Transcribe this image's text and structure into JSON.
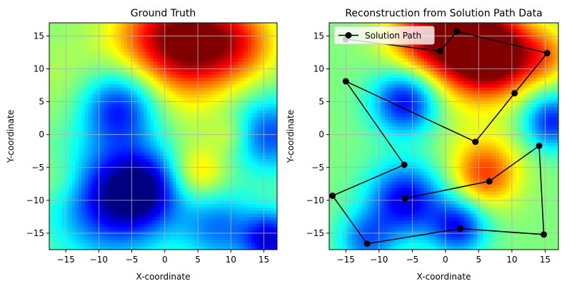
{
  "chart_data": [
    {
      "type": "heatmap",
      "title": "Ground Truth",
      "xlabel": "X-coordinate",
      "ylabel": "Y-coordinate",
      "xlim": [
        -17.5,
        17
      ],
      "ylim": [
        -17.5,
        17
      ],
      "xticks": [
        -15,
        -10,
        -5,
        0,
        5,
        10,
        15
      ],
      "yticks": [
        -15,
        -10,
        -5,
        0,
        5,
        10,
        15
      ],
      "xtick_labels": [
        "−15",
        "−10",
        "−5",
        "0",
        "5",
        "10",
        "15"
      ],
      "ytick_labels": [
        "−15",
        "−10",
        "−5",
        "0",
        "5",
        "10",
        "15"
      ],
      "grid": true,
      "colormap": "jet",
      "value_range": [
        0,
        1
      ],
      "field_blobs": [
        {
          "x": 5,
          "y": 14,
          "value": 0.95,
          "radius": 5
        },
        {
          "x": -2,
          "y": 15,
          "value": 0.75,
          "radius": 5
        },
        {
          "x": 12,
          "y": 14,
          "value": 0.7,
          "radius": 4
        },
        {
          "x": -7,
          "y": 4,
          "value": 0.15,
          "radius": 4
        },
        {
          "x": -8,
          "y": -10,
          "value": 0.1,
          "radius": 6
        },
        {
          "x": -3,
          "y": -8,
          "value": 0.2,
          "radius": 4
        },
        {
          "x": 16,
          "y": 0,
          "value": 0.2,
          "radius": 4
        },
        {
          "x": 16,
          "y": -16,
          "value": 0.1,
          "radius": 3
        },
        {
          "x": 5,
          "y": -6,
          "value": 0.7,
          "radius": 3
        },
        {
          "x": 10,
          "y": 0,
          "value": 0.6,
          "radius": 2
        },
        {
          "x": -15,
          "y": 8,
          "value": 0.55,
          "radius": 5
        },
        {
          "x": 3,
          "y": 4,
          "value": 0.55,
          "radius": 5
        },
        {
          "x": -16,
          "y": -7,
          "value": 0.6,
          "radius": 3
        },
        {
          "x": 8,
          "y": -14,
          "value": 0.25,
          "radius": 4
        }
      ]
    },
    {
      "type": "heatmap",
      "title": "Reconstruction from Solution Path Data",
      "xlabel": "X-coordinate",
      "ylabel": "Y-coordinate",
      "xlim": [
        -17.5,
        17
      ],
      "ylim": [
        -17.5,
        17
      ],
      "xticks": [
        -15,
        -10,
        -5,
        0,
        5,
        10,
        15
      ],
      "yticks": [
        -15,
        -10,
        -5,
        0,
        5,
        10,
        15
      ],
      "xtick_labels": [
        "−15",
        "−10",
        "−5",
        "0",
        "5",
        "10",
        "15"
      ],
      "ytick_labels": [
        "−15",
        "−10",
        "−5",
        "0",
        "5",
        "10",
        "15"
      ],
      "grid": true,
      "colormap": "jet",
      "value_range": [
        0,
        1
      ],
      "field_blobs": [
        {
          "x": 3,
          "y": 14,
          "value": 1.0,
          "radius": 5
        },
        {
          "x": 8,
          "y": 12,
          "value": 0.9,
          "radius": 4
        },
        {
          "x": -4,
          "y": 15,
          "value": 0.75,
          "radius": 4
        },
        {
          "x": 15,
          "y": 12,
          "value": 0.7,
          "radius": 3
        },
        {
          "x": 6,
          "y": -6,
          "value": 0.8,
          "radius": 3.5
        },
        {
          "x": -6,
          "y": 5,
          "value": 0.1,
          "radius": 3.5
        },
        {
          "x": -6,
          "y": -10,
          "value": 0.1,
          "radius": 4
        },
        {
          "x": 2,
          "y": -14,
          "value": 0.15,
          "radius": 3
        },
        {
          "x": 16,
          "y": 2,
          "value": 0.15,
          "radius": 3
        },
        {
          "x": -12,
          "y": -16,
          "value": 0.25,
          "radius": 3
        },
        {
          "x": 4,
          "y": 2,
          "value": 0.55,
          "radius": 6
        }
      ],
      "legend": {
        "label": "Solution Path",
        "position": "top-left"
      },
      "series": [
        {
          "name": "Solution Path",
          "color": "#000000",
          "marker": "circle",
          "points": [
            {
              "x": -15,
              "y": 14.5
            },
            {
              "x": -0.8,
              "y": 12.7
            },
            {
              "x": 1.7,
              "y": 15.7
            },
            {
              "x": 15.3,
              "y": 12.4
            },
            {
              "x": 10.4,
              "y": 6.3
            },
            {
              "x": 4.5,
              "y": -1.1
            },
            {
              "x": -15,
              "y": 8.1
            },
            {
              "x": -6.2,
              "y": -4.6
            },
            {
              "x": -17,
              "y": -9.3
            },
            {
              "x": -11.8,
              "y": -16.6
            },
            {
              "x": 2.2,
              "y": -14.3
            },
            {
              "x": 14.8,
              "y": -15.2
            },
            {
              "x": 14.1,
              "y": -1.7
            },
            {
              "x": 6.6,
              "y": -7.1
            },
            {
              "x": -6.1,
              "y": -9.7
            }
          ]
        }
      ]
    }
  ]
}
